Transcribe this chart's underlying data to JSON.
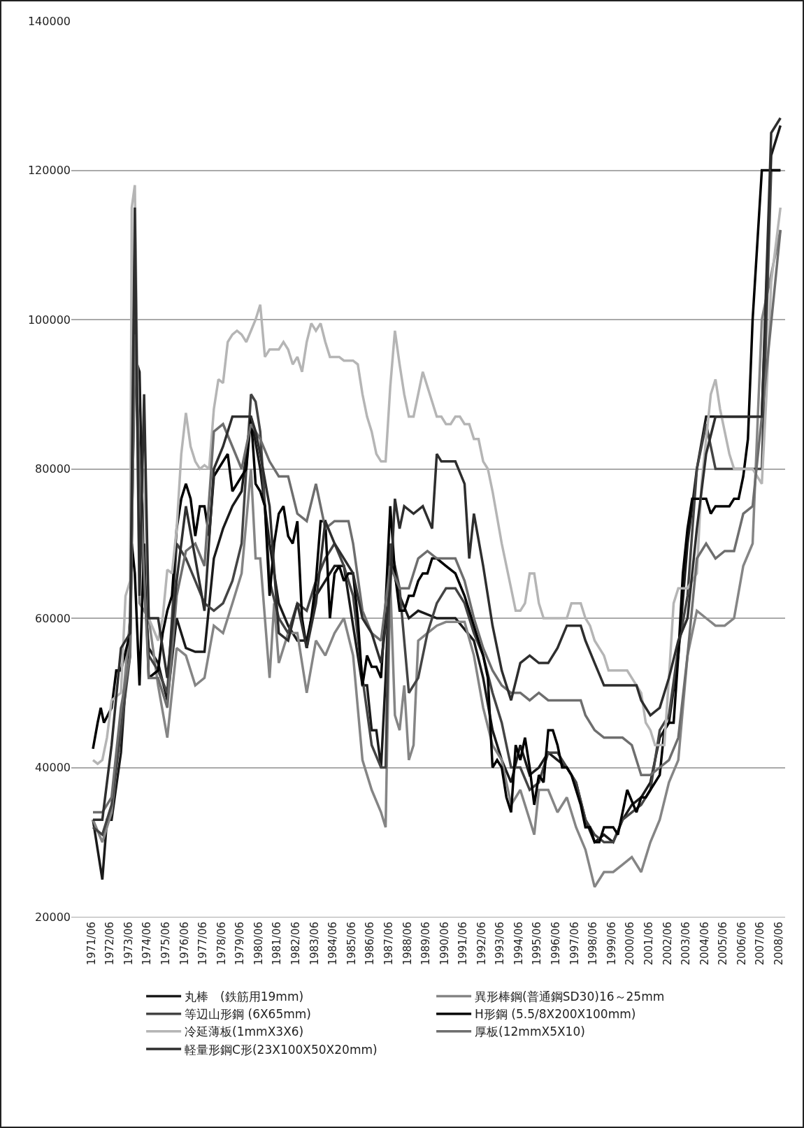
{
  "chart_data": {
    "type": "line",
    "xlim": [
      "1970-05",
      "2008-10"
    ],
    "ylim": [
      20000,
      140000
    ],
    "yticks": [
      20000,
      40000,
      60000,
      80000,
      100000,
      120000,
      140000
    ],
    "xticks": [
      {
        "value": "1971-06",
        "label": "1971/06"
      },
      {
        "value": "1972-06",
        "label": "1972/06"
      },
      {
        "value": "1973-06",
        "label": "1973/06"
      },
      {
        "value": "1974-06",
        "label": "1974/06"
      },
      {
        "value": "1975-06",
        "label": "1975/06"
      },
      {
        "value": "1976-06",
        "label": "1976/06"
      },
      {
        "value": "1977-06",
        "label": "1977/06"
      },
      {
        "value": "1978-06",
        "label": "1978/06"
      },
      {
        "value": "1979-06",
        "label": "1979/06"
      },
      {
        "value": "1980-06",
        "label": "1980/06"
      },
      {
        "value": "1981-06",
        "label": "1981/06"
      },
      {
        "value": "1982-06",
        "label": "1982/06"
      },
      {
        "value": "1983-06",
        "label": "1983/06"
      },
      {
        "value": "1984-06",
        "label": "1984/06"
      },
      {
        "value": "1985-06",
        "label": "1985/06"
      },
      {
        "value": "1986-06",
        "label": "1986/06"
      },
      {
        "value": "1987-06",
        "label": "1987/06"
      },
      {
        "value": "1988-06",
        "label": "1988/06"
      },
      {
        "value": "1989-06",
        "label": "1989/06"
      },
      {
        "value": "1990-06",
        "label": "1990/06"
      },
      {
        "value": "1991-06",
        "label": "1991/06"
      },
      {
        "value": "1992-06",
        "label": "1992/06"
      },
      {
        "value": "1993-06",
        "label": "1993/06"
      },
      {
        "value": "1994-06",
        "label": "1994/06"
      },
      {
        "value": "1995-06",
        "label": "1995/06"
      },
      {
        "value": "1996-06",
        "label": "1996/06"
      },
      {
        "value": "1997-06",
        "label": "1997/06"
      },
      {
        "value": "1998-06",
        "label": "1998/06"
      },
      {
        "value": "1999-06",
        "label": "1999/06"
      },
      {
        "value": "2000-06",
        "label": "2000/06"
      },
      {
        "value": "2001-06",
        "label": "2001/06"
      },
      {
        "value": "2002-06",
        "label": "2002/06"
      },
      {
        "value": "2003-06",
        "label": "2003/06"
      },
      {
        "value": "2004-06",
        "label": "2004/06"
      },
      {
        "value": "2005-06",
        "label": "2005/06"
      },
      {
        "value": "2006-06",
        "label": "2006/06"
      },
      {
        "value": "2007-06",
        "label": "2007/06"
      },
      {
        "value": "2008-06",
        "label": "2008/06"
      }
    ],
    "grid": "y",
    "legend": "bottom",
    "line_style": "solid",
    "marker": "none",
    "series": [
      {
        "name": "丸棒　(鉄筋用19mm)",
        "color": "#1a1a1a",
        "x": [
          "1971-07",
          "1972-01",
          "1972-04",
          "1972-07",
          "1973-01",
          "1973-07",
          "1973-10",
          "1974-01",
          "1974-04",
          "1974-07",
          "1975-01",
          "1975-07",
          "1976-01",
          "1976-07",
          "1977-01",
          "1977-07",
          "1978-01",
          "1978-07",
          "1979-01",
          "1979-07",
          "1980-01",
          "1980-07",
          "1981-01",
          "1981-07",
          "1982-01",
          "1982-07",
          "1983-01",
          "1983-07",
          "1984-01",
          "1984-07",
          "1985-01",
          "1985-07",
          "1986-01",
          "1986-04",
          "1986-07",
          "1986-10",
          "1987-01",
          "1987-04",
          "1987-07",
          "1988-01",
          "1988-07",
          "1989-01",
          "1990-01",
          "1991-01",
          "1992-01",
          "1992-07",
          "1993-01",
          "1993-07",
          "1994-01",
          "1994-07",
          "1995-01",
          "1995-07",
          "1996-01",
          "1996-07",
          "1997-01",
          "1997-07",
          "1998-01",
          "1998-07",
          "1999-01",
          "1999-07",
          "2000-01",
          "2000-07",
          "2001-01",
          "2001-07",
          "2002-01",
          "2002-07",
          "2003-01",
          "2003-07",
          "2004-01",
          "2004-07",
          "2005-01",
          "2006-01",
          "2007-01",
          "2007-07",
          "2008-01",
          "2008-07"
        ],
        "values": [
          33000,
          25000,
          33000,
          33000,
          42000,
          60000,
          95000,
          93000,
          64000,
          56000,
          54000,
          49000,
          60000,
          56000,
          55500,
          55500,
          68000,
          72000,
          75000,
          77000,
          87000,
          80000,
          70000,
          62000,
          59000,
          57000,
          57000,
          63000,
          65000,
          67000,
          67000,
          59000,
          51000,
          51000,
          45000,
          45000,
          40000,
          52000,
          68000,
          63000,
          60000,
          61000,
          60000,
          60000,
          57000,
          52000,
          45000,
          41000,
          38000,
          43000,
          39000,
          40000,
          42000,
          41000,
          40000,
          38000,
          33000,
          30000,
          31000,
          30000,
          33000,
          35000,
          36000,
          38000,
          44000,
          46000,
          55000,
          70000,
          80000,
          87000,
          87000,
          87000,
          87000,
          87000,
          122000,
          126000
        ]
      },
      {
        "name": "異形棒鋼(普通鋼SD30)16～25mm",
        "color": "#858585",
        "x": [
          "1971-07",
          "1972-01",
          "1972-07",
          "1973-01",
          "1973-07",
          "1973-10",
          "1974-01",
          "1974-07",
          "1975-01",
          "1975-07",
          "1976-01",
          "1976-07",
          "1977-01",
          "1977-07",
          "1978-01",
          "1978-07",
          "1979-01",
          "1979-07",
          "1980-01",
          "1980-04",
          "1980-07",
          "1981-01",
          "1981-04",
          "1981-07",
          "1982-01",
          "1982-07",
          "1983-01",
          "1983-07",
          "1984-01",
          "1984-07",
          "1985-01",
          "1985-07",
          "1986-01",
          "1986-07",
          "1987-01",
          "1987-04",
          "1987-07",
          "1987-10",
          "1988-01",
          "1988-04",
          "1988-07",
          "1988-10",
          "1989-01",
          "1989-07",
          "1990-01",
          "1990-07",
          "1991-07",
          "1992-01",
          "1992-07",
          "1993-01",
          "1993-07",
          "1994-01",
          "1994-07",
          "1995-01",
          "1995-04",
          "1995-07",
          "1996-01",
          "1996-07",
          "1997-01",
          "1997-07",
          "1998-01",
          "1998-07",
          "1999-01",
          "1999-07",
          "2000-01",
          "2000-07",
          "2001-01",
          "2001-07",
          "2002-01",
          "2002-07",
          "2003-01",
          "2003-07",
          "2004-01",
          "2004-07",
          "2005-01",
          "2005-07",
          "2006-01",
          "2006-07",
          "2007-01",
          "2007-07",
          "2008-07"
        ],
        "values": [
          33000,
          30000,
          34000,
          46000,
          60000,
          110000,
          62000,
          60000,
          51000,
          44000,
          56000,
          55000,
          51000,
          52000,
          59000,
          58000,
          62000,
          66000,
          80000,
          68000,
          68000,
          52000,
          62000,
          54000,
          58000,
          58000,
          50000,
          57000,
          55000,
          58000,
          60000,
          55000,
          41000,
          37000,
          34000,
          32000,
          65000,
          47000,
          45000,
          51000,
          41000,
          43000,
          57000,
          58000,
          59000,
          59500,
          59500,
          55000,
          48000,
          43000,
          41000,
          35000,
          37000,
          33000,
          31000,
          37000,
          37000,
          34000,
          36000,
          32000,
          29000,
          24000,
          26000,
          26000,
          27000,
          28000,
          26000,
          30000,
          33000,
          38000,
          41000,
          55000,
          61000,
          60000,
          59000,
          59000,
          60000,
          67000,
          70000,
          100000,
          112000
        ]
      },
      {
        "name": "等辺山形鋼 (6X65mm)",
        "color": "#444444",
        "x": [
          "1971-07",
          "1972-01",
          "1972-07",
          "1973-01",
          "1973-07",
          "1973-10",
          "1974-01",
          "1974-07",
          "1975-01",
          "1975-07",
          "1976-01",
          "1976-07",
          "1977-01",
          "1977-07",
          "1978-01",
          "1978-07",
          "1979-01",
          "1979-07",
          "1980-01",
          "1980-04",
          "1980-07",
          "1981-01",
          "1981-07",
          "1982-01",
          "1982-07",
          "1983-01",
          "1983-07",
          "1984-01",
          "1984-07",
          "1985-01",
          "1985-07",
          "1986-01",
          "1986-07",
          "1987-01",
          "1987-04",
          "1987-07",
          "1988-01",
          "1988-07",
          "1989-01",
          "1989-07",
          "1990-01",
          "1990-07",
          "1991-01",
          "1991-07",
          "1992-01",
          "1992-07",
          "1993-01",
          "1993-07",
          "1994-01",
          "1994-07",
          "1995-01",
          "1995-07",
          "1996-01",
          "1996-07",
          "1997-01",
          "1997-07",
          "1998-01",
          "1998-07",
          "1999-01",
          "1999-07",
          "2000-01",
          "2000-07",
          "2001-01",
          "2001-07",
          "2002-01",
          "2002-07",
          "2003-01",
          "2003-07",
          "2004-01",
          "2004-07",
          "2005-01",
          "2007-07",
          "2008-01",
          "2008-07"
        ],
        "values": [
          32000,
          31000,
          35000,
          45000,
          55000,
          100000,
          75000,
          55000,
          53000,
          50000,
          70000,
          68000,
          65000,
          62000,
          61000,
          62000,
          65000,
          70000,
          90000,
          89000,
          85000,
          65000,
          60000,
          58000,
          62000,
          61000,
          65000,
          68000,
          70000,
          67000,
          63000,
          52000,
          43000,
          40000,
          40000,
          70000,
          64000,
          50000,
          52000,
          58000,
          62000,
          64000,
          64000,
          62000,
          58000,
          55000,
          50000,
          46000,
          40000,
          40000,
          37000,
          38000,
          42000,
          42000,
          40000,
          38000,
          33000,
          31000,
          30000,
          30000,
          33000,
          34000,
          35000,
          37000,
          45000,
          47000,
          56000,
          63000,
          80000,
          86000,
          80000,
          80000,
          120000,
          120000
        ]
      },
      {
        "name": "H形鋼 (5.5/8X200X100mm)",
        "color": "#000000",
        "x": [
          "1971-07",
          "1971-10",
          "1971-12",
          "1972-02",
          "1972-07",
          "1972-10",
          "1973-01",
          "1973-07",
          "1973-08",
          "1973-10",
          "1974-01",
          "1974-04",
          "1974-07",
          "1975-01",
          "1975-04",
          "1975-07",
          "1975-10",
          "1976-01",
          "1976-04",
          "1976-07",
          "1976-10",
          "1977-01",
          "1977-04",
          "1977-07",
          "1977-10",
          "1978-01",
          "1978-04",
          "1978-07",
          "1978-10",
          "1979-01",
          "1979-07",
          "1979-10",
          "1980-01",
          "1980-04",
          "1980-07",
          "1980-10",
          "1981-01",
          "1981-04",
          "1981-07",
          "1981-10",
          "1982-01",
          "1982-04",
          "1982-07",
          "1982-10",
          "1983-01",
          "1983-04",
          "1983-07",
          "1983-10",
          "1984-01",
          "1984-04",
          "1984-07",
          "1984-10",
          "1985-01",
          "1985-04",
          "1985-07",
          "1985-10",
          "1986-01",
          "1986-04",
          "1986-07",
          "1986-10",
          "1987-01",
          "1987-04",
          "1987-07",
          "1987-10",
          "1988-01",
          "1988-04",
          "1988-07",
          "1988-10",
          "1989-01",
          "1989-04",
          "1989-07",
          "1989-10",
          "1990-01",
          "1990-07",
          "1991-01",
          "1991-07",
          "1992-01",
          "1992-07",
          "1992-10",
          "1993-01",
          "1993-04",
          "1993-07",
          "1993-10",
          "1994-01",
          "1994-04",
          "1994-07",
          "1994-10",
          "1995-01",
          "1995-04",
          "1995-07",
          "1995-10",
          "1996-01",
          "1996-04",
          "1996-07",
          "1996-10",
          "1997-01",
          "1997-04",
          "1997-07",
          "1997-10",
          "1998-01",
          "1998-04",
          "1998-07",
          "1998-10",
          "1999-01",
          "1999-07",
          "1999-10",
          "2000-01",
          "2000-04",
          "2000-10",
          "2001-01",
          "2001-04",
          "2001-07",
          "2001-10",
          "2002-01",
          "2002-04",
          "2002-07",
          "2002-10",
          "2003-01",
          "2003-04",
          "2003-07",
          "2003-10",
          "2004-07",
          "2004-10",
          "2005-01",
          "2005-10",
          "2006-01",
          "2006-04",
          "2006-07",
          "2006-10",
          "2007-01",
          "2007-07",
          "2008-07"
        ],
        "values": [
          42500,
          46000,
          48000,
          46000,
          48000,
          53000,
          53000,
          58000,
          70000,
          66000,
          51000,
          70000,
          52000,
          53000,
          58000,
          61000,
          63000,
          72000,
          76000,
          78000,
          76000,
          71000,
          75000,
          75000,
          71000,
          79000,
          80000,
          81000,
          82000,
          77000,
          79000,
          80000,
          87000,
          78000,
          77000,
          75000,
          63000,
          70000,
          74000,
          75000,
          71000,
          70000,
          73000,
          60000,
          56000,
          60000,
          65000,
          73000,
          73000,
          60000,
          66000,
          67000,
          65000,
          66000,
          66000,
          60000,
          51000,
          55000,
          53500,
          53500,
          52000,
          62000,
          75000,
          66000,
          61000,
          61000,
          63000,
          63000,
          65000,
          66000,
          66000,
          68000,
          68000,
          67000,
          66000,
          63000,
          59000,
          55000,
          52000,
          40000,
          41000,
          40000,
          36000,
          34000,
          43000,
          41000,
          44000,
          40000,
          35000,
          39000,
          38000,
          45000,
          45000,
          43000,
          40000,
          40000,
          39000,
          37000,
          35000,
          32000,
          32000,
          30000,
          30000,
          32000,
          32000,
          31000,
          34000,
          37000,
          34000,
          36000,
          36000,
          37000,
          38000,
          39000,
          45000,
          46000,
          46000,
          55000,
          66000,
          72000,
          76000,
          76000,
          74000,
          75000,
          75000,
          76000,
          76000,
          79000,
          84000,
          100000,
          120000,
          120000
        ]
      },
      {
        "name": "冷延薄板(1mmX3X6)",
        "color": "#b5b5b5",
        "x": [
          "1971-07",
          "1971-10",
          "1972-01",
          "1972-04",
          "1972-07",
          "1973-01",
          "1973-04",
          "1973-07",
          "1973-08",
          "1973-10",
          "1974-01",
          "1974-04",
          "1974-07",
          "1975-01",
          "1975-04",
          "1975-07",
          "1975-10",
          "1976-01",
          "1976-04",
          "1976-07",
          "1976-10",
          "1977-01",
          "1977-04",
          "1977-07",
          "1977-10",
          "1978-01",
          "1978-04",
          "1978-07",
          "1978-10",
          "1979-01",
          "1979-04",
          "1979-07",
          "1979-10",
          "1980-01",
          "1980-04",
          "1980-07",
          "1980-10",
          "1981-01",
          "1981-07",
          "1981-10",
          "1982-01",
          "1982-04",
          "1982-07",
          "1982-10",
          "1983-01",
          "1983-04",
          "1983-07",
          "1983-10",
          "1984-01",
          "1984-04",
          "1984-10",
          "1985-01",
          "1985-07",
          "1985-10",
          "1986-01",
          "1986-04",
          "1986-07",
          "1986-10",
          "1987-01",
          "1987-04",
          "1987-07",
          "1987-10",
          "1988-01",
          "1988-04",
          "1988-07",
          "1988-10",
          "1989-04",
          "1990-01",
          "1990-04",
          "1990-07",
          "1990-10",
          "1991-01",
          "1991-04",
          "1991-07",
          "1991-10",
          "1992-01",
          "1992-04",
          "1992-07",
          "1992-10",
          "1993-01",
          "1993-07",
          "1994-01",
          "1994-04",
          "1994-07",
          "1994-10",
          "1995-01",
          "1995-04",
          "1995-07",
          "1995-10",
          "1997-01",
          "1997-04",
          "1997-10",
          "1998-01",
          "1998-04",
          "1998-07",
          "1999-01",
          "1999-04",
          "2000-04",
          "2000-07",
          "2000-10",
          "2001-01",
          "2001-04",
          "2001-07",
          "2001-10",
          "2002-04",
          "2002-07",
          "2002-10",
          "2003-01",
          "2003-07",
          "2004-01",
          "2004-04",
          "2004-10",
          "2005-01",
          "2005-04",
          "2005-10",
          "2006-01",
          "2007-01",
          "2007-04",
          "2007-07",
          "2007-10",
          "2008-01",
          "2008-07"
        ],
        "values": [
          41000,
          40500,
          41000,
          44000,
          49000,
          50000,
          63000,
          65000,
          115000,
          118000,
          72000,
          80000,
          60000,
          57000,
          60000,
          66500,
          66000,
          72000,
          82000,
          87500,
          83000,
          81000,
          80000,
          80500,
          80000,
          88000,
          92000,
          91500,
          97000,
          98000,
          98500,
          98000,
          97000,
          98500,
          100000,
          102000,
          95000,
          96000,
          96000,
          97000,
          96000,
          94000,
          95000,
          93000,
          97000,
          99500,
          98500,
          99500,
          97000,
          95000,
          95000,
          94500,
          94500,
          94000,
          90000,
          87000,
          85000,
          82000,
          81000,
          81000,
          91000,
          98500,
          94000,
          90000,
          87000,
          87000,
          93000,
          87000,
          87000,
          86000,
          86000,
          87000,
          87000,
          86000,
          86000,
          84000,
          84000,
          81000,
          80000,
          77000,
          70000,
          64000,
          61000,
          61000,
          62000,
          66000,
          66000,
          62000,
          60000,
          60000,
          62000,
          62000,
          60000,
          59000,
          57000,
          55000,
          53000,
          53000,
          52000,
          51000,
          50000,
          46000,
          45000,
          43000,
          43000,
          52000,
          62000,
          64000,
          64000,
          66000,
          78000,
          90000,
          92000,
          88000,
          82000,
          80000,
          80000,
          79000,
          78000,
          90000,
          105000,
          115000
        ]
      },
      {
        "name": "厚板(12mmX5X10)",
        "color": "#6e6e6e",
        "x": [
          "1971-07",
          "1972-01",
          "1972-07",
          "1973-01",
          "1973-07",
          "1973-10",
          "1974-01",
          "1974-07",
          "1975-01",
          "1975-07",
          "1976-01",
          "1976-07",
          "1977-01",
          "1977-07",
          "1978-01",
          "1978-07",
          "1979-01",
          "1979-07",
          "1980-01",
          "1980-07",
          "1981-01",
          "1981-07",
          "1982-01",
          "1982-07",
          "1983-01",
          "1983-07",
          "1984-01",
          "1984-07",
          "1985-01",
          "1985-04",
          "1985-07",
          "1986-01",
          "1986-07",
          "1987-01",
          "1987-07",
          "1988-01",
          "1988-07",
          "1989-01",
          "1989-07",
          "1990-01",
          "1990-07",
          "1991-01",
          "1991-07",
          "1992-01",
          "1992-07",
          "1993-01",
          "1993-07",
          "1994-01",
          "1994-07",
          "1995-01",
          "1995-07",
          "1996-01",
          "1996-07",
          "1997-01",
          "1997-10",
          "1998-01",
          "1998-07",
          "1999-01",
          "1999-07",
          "2000-01",
          "2000-07",
          "2001-01",
          "2001-07",
          "2002-01",
          "2002-07",
          "2003-01",
          "2003-07",
          "2004-01",
          "2004-07",
          "2005-01",
          "2005-07",
          "2006-01",
          "2006-07",
          "2007-01",
          "2007-07",
          "2008-07"
        ],
        "values": [
          34000,
          34000,
          36000,
          48000,
          55000,
          98000,
          80000,
          52000,
          52000,
          48000,
          63000,
          69000,
          70000,
          67000,
          85000,
          86000,
          83000,
          80000,
          86000,
          84000,
          81000,
          79000,
          79000,
          74000,
          73000,
          78000,
          72000,
          73000,
          73000,
          73000,
          70000,
          61000,
          58000,
          57000,
          67000,
          64000,
          64000,
          68000,
          69000,
          68000,
          68000,
          68000,
          65000,
          60000,
          56000,
          53000,
          51000,
          50000,
          50000,
          49000,
          50000,
          49000,
          49000,
          49000,
          49000,
          47000,
          45000,
          44000,
          44000,
          44000,
          43000,
          39000,
          39000,
          40000,
          41000,
          44000,
          55000,
          68000,
          70000,
          68000,
          69000,
          69000,
          74000,
          75000,
          87000,
          112000
        ]
      },
      {
        "name": "軽量形鋼C形(23X100X50X20mm)",
        "color": "#2e2e2e",
        "x": [
          "1971-07",
          "1972-01",
          "1972-07",
          "1973-01",
          "1973-07",
          "1973-10",
          "1974-01",
          "1974-04",
          "1974-07",
          "1975-01",
          "1975-07",
          "1976-01",
          "1976-07",
          "1977-01",
          "1977-07",
          "1978-01",
          "1978-07",
          "1979-01",
          "1979-07",
          "1980-01",
          "1980-04",
          "1980-07",
          "1981-01",
          "1981-07",
          "1982-01",
          "1982-07",
          "1983-01",
          "1983-07",
          "1984-01",
          "1984-07",
          "1985-01",
          "1985-07",
          "1986-01",
          "1986-07",
          "1987-01",
          "1987-07",
          "1987-10",
          "1988-01",
          "1988-04",
          "1988-10",
          "1989-04",
          "1989-10",
          "1990-01",
          "1990-04",
          "1991-01",
          "1991-07",
          "1991-10",
          "1992-01",
          "1992-07",
          "1993-01",
          "1993-07",
          "1994-01",
          "1994-07",
          "1995-01",
          "1995-07",
          "1996-01",
          "1996-07",
          "1997-01",
          "1997-10",
          "1998-01",
          "1998-07",
          "1999-01",
          "2000-01",
          "2000-10",
          "2001-01",
          "2001-07",
          "2002-01",
          "2002-07",
          "2003-01",
          "2003-07",
          "2004-01",
          "2004-07",
          "2005-01",
          "2007-07",
          "2008-01",
          "2008-07"
        ],
        "values": [
          33000,
          33000,
          43000,
          56000,
          58000,
          115000,
          63000,
          90000,
          60000,
          60000,
          52000,
          65000,
          75000,
          68000,
          61000,
          80000,
          83000,
          87000,
          87000,
          87000,
          85000,
          82000,
          75000,
          58000,
          57000,
          62000,
          56000,
          62000,
          73000,
          70000,
          68000,
          66000,
          60000,
          58000,
          54000,
          64000,
          76000,
          72000,
          75000,
          74000,
          75000,
          72000,
          82000,
          81000,
          81000,
          78000,
          68000,
          74000,
          67000,
          59000,
          53000,
          49000,
          54000,
          55000,
          54000,
          54000,
          56000,
          59000,
          59000,
          57000,
          54000,
          51000,
          51000,
          51000,
          49000,
          47000,
          48000,
          52000,
          57000,
          60000,
          72000,
          82000,
          87000,
          87000,
          125000,
          127000
        ]
      }
    ]
  }
}
